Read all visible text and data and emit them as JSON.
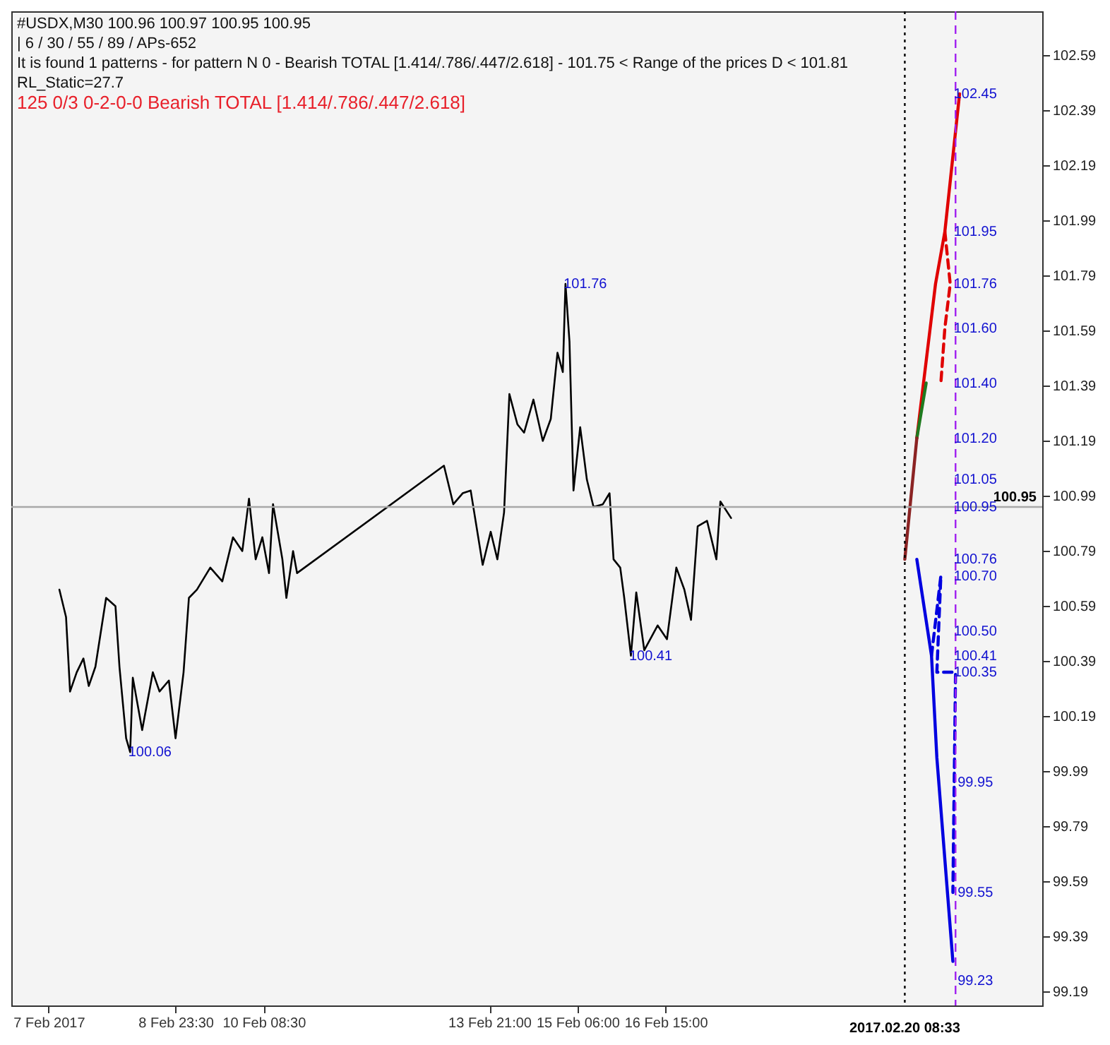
{
  "chart_data": {
    "type": "line",
    "title": "#USDX,M30  100.96 100.97 100.95 100.95",
    "subtitle": "| 6 / 30 / 55 / 89 / APs-652",
    "annotations": [
      "It is found 1 patterns  -  for pattern N 0 - Bearish TOTAL [1.414/.786/.447/2.618] - 101.75 < Range of the prices D < 101.81",
      "RL_Static=27.7",
      "125     0/3     0-2-0-0     Bearish TOTAL [1.414/.786/.447/2.618]",
      {
        "text": "101.76",
        "x": "2017-02-15T01:30",
        "y": 101.76
      },
      {
        "text": "100.41",
        "x": "2017-02-16T02:00",
        "y": 100.41
      },
      {
        "text": "100.06",
        "x": "2017-02-08T06:30",
        "y": 100.06
      },
      {
        "text": "102.45",
        "x": "2017-02-21T03:33",
        "y": 102.45
      },
      {
        "text": "101.95",
        "x": "2017-02-21T03:33",
        "y": 101.95
      },
      {
        "text": "101.76",
        "x": "2017-02-21T03:33",
        "y": 101.76
      },
      {
        "text": "101.60",
        "x": "2017-02-21T03:33",
        "y": 101.6
      },
      {
        "text": "101.40",
        "x": "2017-02-21T03:33",
        "y": 101.4
      },
      {
        "text": "101.20",
        "x": "2017-02-21T03:33",
        "y": 101.2
      },
      {
        "text": "101.05",
        "x": "2017-02-21T03:33",
        "y": 101.05
      },
      {
        "text": "100.95",
        "x": "2017-02-21T03:33",
        "y": 100.95
      },
      {
        "text": "100.76",
        "x": "2017-02-21T03:33",
        "y": 100.76
      },
      {
        "text": "100.70",
        "x": "2017-02-21T03:33",
        "y": 100.7
      },
      {
        "text": "100.50",
        "x": "2017-02-21T03:33",
        "y": 100.5
      },
      {
        "text": "100.41",
        "x": "2017-02-21T03:33",
        "y": 100.41
      },
      {
        "text": "100.35",
        "x": "2017-02-21T03:33",
        "y": 100.35
      },
      {
        "text": "99.95",
        "x": "2017-02-21T03:33",
        "y": 99.95
      },
      {
        "text": "99.55",
        "x": "2017-02-21T03:33",
        "y": 99.55
      },
      {
        "text": "99.23",
        "x": "2017-02-21T03:33",
        "y": 99.23
      }
    ],
    "xlim": [
      "2017-02-06T10:00",
      "2017-02-22T12:00"
    ],
    "xticks": [
      {
        "value": "2017-02-07",
        "label": "7 Feb 2017"
      },
      {
        "value": "2017-02-08T23:30",
        "label": "8 Feb 23:30"
      },
      {
        "value": "2017-02-10T08:30",
        "label": "10 Feb 08:30"
      },
      {
        "value": "2017-02-13T21:00",
        "label": "13 Feb 21:00"
      },
      {
        "value": "2017-02-15T06:00",
        "label": "15 Feb 06:00"
      },
      {
        "value": "2017-02-16T15:00",
        "label": "16 Feb 15:00"
      }
    ],
    "ylim": [
      99.14,
      102.75
    ],
    "yticks": [
      99.19,
      99.39,
      99.59,
      99.79,
      99.99,
      100.19,
      100.39,
      100.59,
      100.79,
      100.99,
      101.19,
      101.39,
      101.59,
      101.79,
      101.99,
      102.19,
      102.39,
      102.59
    ],
    "grid": false,
    "marker": "none",
    "line_style": "solid",
    "ref_lines": [
      {
        "axis": "y",
        "value": 100.95,
        "label": "100.95",
        "color": "#a8a8a8",
        "line_style": "solid"
      },
      {
        "axis": "x",
        "value": "2017-02-20T08:33",
        "label": "2017.02.20 08:33",
        "color": "#000000",
        "line_style": "dotted"
      },
      {
        "axis": "x",
        "value": "2017-02-21T03:33",
        "color": "#a020f0",
        "line_style": "dashed"
      }
    ],
    "series": [
      {
        "color": "#000000",
        "x": [
          "2017-02-07T04:00",
          "2017-02-07T06:30",
          "2017-02-07T08:00",
          "2017-02-07T10:30",
          "2017-02-07T13:00",
          "2017-02-07T15:00",
          "2017-02-07T17:30",
          "2017-02-07T21:30",
          "2017-02-08T01:00",
          "2017-02-08T02:30",
          "2017-02-08T05:00",
          "2017-02-08T06:30",
          "2017-02-08T07:30",
          "2017-02-08T11:00",
          "2017-02-08T15:00",
          "2017-02-08T17:30",
          "2017-02-08T21:00",
          "2017-02-08T23:30",
          "2017-02-09T02:30",
          "2017-02-09T04:30",
          "2017-02-09T07:30",
          "2017-02-09T12:30",
          "2017-02-09T17:00",
          "2017-02-09T21:00",
          "2017-02-10T00:30",
          "2017-02-10T03:00",
          "2017-02-10T05:30",
          "2017-02-10T08:00",
          "2017-02-10T10:30",
          "2017-02-10T12:00",
          "2017-02-10T15:30",
          "2017-02-10T17:00",
          "2017-02-10T19:30",
          "2017-02-10T21:00",
          "2017-02-13T04:00",
          "2017-02-13T07:30",
          "2017-02-13T11:00",
          "2017-02-13T14:00",
          "2017-02-13T18:30",
          "2017-02-13T21:30",
          "2017-02-14T00:00",
          "2017-02-14T02:30",
          "2017-02-14T04:30",
          "2017-02-14T07:30",
          "2017-02-14T10:00",
          "2017-02-14T13:30",
          "2017-02-14T17:00",
          "2017-02-14T20:00",
          "2017-02-14T22:30",
          "2017-02-15T00:30",
          "2017-02-15T01:30",
          "2017-02-15T03:00",
          "2017-02-15T04:30",
          "2017-02-15T07:00",
          "2017-02-15T09:30",
          "2017-02-15T12:00",
          "2017-02-15T15:30",
          "2017-02-15T18:00",
          "2017-02-15T19:30",
          "2017-02-15T22:00",
          "2017-02-15T23:30",
          "2017-02-16T02:00",
          "2017-02-16T04:00",
          "2017-02-16T07:00",
          "2017-02-16T12:00",
          "2017-02-16T15:30",
          "2017-02-16T19:00",
          "2017-02-16T22:00",
          "2017-02-17T00:30",
          "2017-02-17T03:00",
          "2017-02-17T06:30",
          "2017-02-17T10:00",
          "2017-02-17T11:30",
          "2017-02-17T15:30"
        ],
        "values": [
          100.65,
          100.55,
          100.28,
          100.35,
          100.4,
          100.3,
          100.37,
          100.62,
          100.59,
          100.37,
          100.11,
          100.06,
          100.33,
          100.14,
          100.35,
          100.28,
          100.32,
          100.11,
          100.35,
          100.62,
          100.65,
          100.73,
          100.68,
          100.84,
          100.79,
          100.98,
          100.76,
          100.84,
          100.71,
          100.96,
          100.76,
          100.62,
          100.79,
          100.71,
          101.1,
          100.96,
          101.0,
          101.01,
          100.74,
          100.86,
          100.76,
          100.93,
          101.36,
          101.25,
          101.22,
          101.34,
          101.19,
          101.27,
          101.51,
          101.44,
          101.76,
          101.55,
          101.01,
          101.24,
          101.05,
          100.95,
          100.96,
          101.0,
          100.76,
          100.73,
          100.62,
          100.41,
          100.64,
          100.43,
          100.52,
          100.47,
          100.73,
          100.65,
          100.54,
          100.88,
          100.9,
          100.76,
          100.97,
          100.91
        ]
      },
      {
        "color": "#8b2323",
        "x": [
          "2017-02-20T08:33",
          "2017-02-20T13:03"
        ],
        "values": [
          100.76,
          101.2
        ]
      },
      {
        "color": "#1f7a1f",
        "x": [
          "2017-02-20T13:03",
          "2017-02-20T16:33"
        ],
        "values": [
          101.2,
          101.4
        ]
      },
      {
        "color": "#e00000",
        "x": [
          "2017-02-20T13:03",
          "2017-02-20T18:03",
          "2017-02-20T20:03",
          "2017-02-20T23:33",
          "2017-02-21T05:03"
        ],
        "values": [
          101.2,
          101.6,
          101.76,
          101.95,
          102.45
        ]
      },
      {
        "color": "#e00000",
        "line_style": "dashed",
        "x": [
          "2017-02-20T23:33",
          "2017-02-21T01:33",
          "2017-02-20T23:33",
          "2017-02-20T22:03"
        ],
        "values": [
          101.95,
          101.76,
          101.6,
          101.4
        ]
      },
      {
        "color": "#0000e0",
        "x": [
          "2017-02-20T13:03",
          "2017-02-20T18:33",
          "2017-02-20T20:33",
          "2017-02-21T02:33"
        ],
        "values": [
          100.76,
          100.41,
          100.04,
          99.3
        ]
      },
      {
        "color": "#0000e0",
        "line_style": "dashed",
        "x": [
          "2017-02-20T18:33",
          "2017-02-20T22:03",
          "2017-02-20T20:33",
          "2017-02-21T03:33",
          "2017-02-21T02:33"
        ],
        "values": [
          100.41,
          100.7,
          100.35,
          100.35,
          99.55
        ]
      }
    ]
  }
}
